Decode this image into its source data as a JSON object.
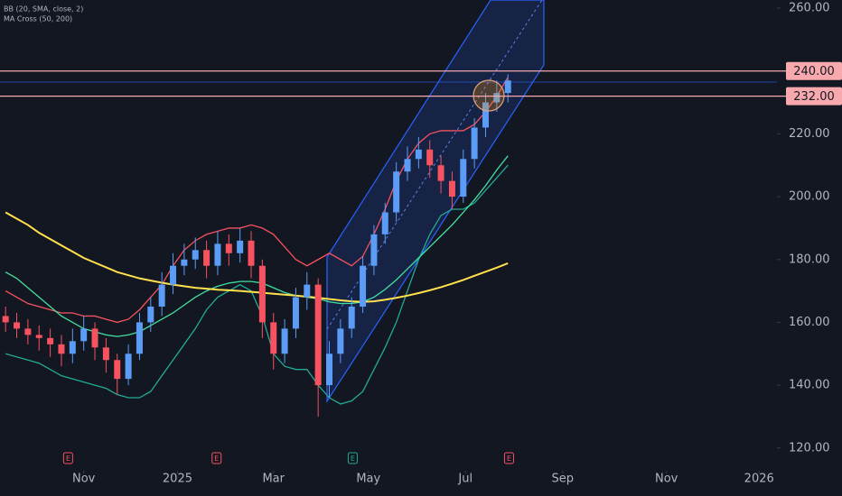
{
  "chart_data": {
    "type": "candlestick",
    "indicators": [
      "BB (20, SMA, close, 2)",
      "MA Cross (50, 200)"
    ],
    "x": [
      0,
      1,
      2,
      3,
      4,
      5,
      6,
      7,
      8,
      9,
      10,
      11,
      12,
      13,
      14,
      15,
      16,
      17,
      18,
      19,
      20,
      21,
      22,
      23,
      24,
      25,
      26,
      27,
      28,
      29,
      30,
      31,
      32,
      33,
      34,
      35,
      36,
      37,
      38,
      39,
      40,
      41,
      42,
      43,
      44,
      45
    ],
    "open": [
      162,
      160,
      158,
      156,
      155,
      153,
      150,
      154,
      158,
      152,
      148,
      142,
      150,
      160,
      165,
      172,
      178,
      180,
      183,
      178,
      185,
      182,
      186,
      178,
      160,
      150,
      158,
      168,
      172,
      140,
      150,
      158,
      165,
      178,
      188,
      195,
      208,
      212,
      215,
      210,
      205,
      200,
      212,
      222,
      230,
      233
    ],
    "high": [
      165,
      163,
      161,
      159,
      158,
      156,
      158,
      162,
      160,
      155,
      150,
      153,
      163,
      168,
      176,
      182,
      185,
      187,
      186,
      189,
      188,
      190,
      189,
      180,
      163,
      161,
      171,
      176,
      174,
      154,
      161,
      168,
      181,
      191,
      198,
      211,
      216,
      219,
      218,
      213,
      208,
      215,
      225,
      233,
      237,
      239
    ],
    "low": [
      157,
      155,
      153,
      151,
      149,
      146,
      147,
      151,
      148,
      144,
      137,
      140,
      148,
      157,
      162,
      169,
      175,
      177,
      174,
      175,
      178,
      179,
      174,
      155,
      145,
      147,
      155,
      164,
      130,
      136,
      147,
      155,
      163,
      175,
      185,
      192,
      205,
      209,
      206,
      201,
      196,
      198,
      209,
      219,
      227,
      230
    ],
    "close": [
      160,
      158,
      156,
      155,
      153,
      150,
      154,
      158,
      152,
      148,
      142,
      150,
      160,
      165,
      172,
      178,
      180,
      183,
      178,
      185,
      182,
      186,
      178,
      160,
      150,
      158,
      168,
      172,
      140,
      150,
      158,
      165,
      178,
      188,
      195,
      208,
      212,
      215,
      210,
      205,
      200,
      212,
      222,
      230,
      233,
      237
    ],
    "up_color": "#5b9cf6",
    "down_color": "#f7525f",
    "overlays": [
      {
        "color": "#f7525f",
        "values": [
          170,
          168,
          166,
          165,
          164,
          163,
          163,
          162,
          162,
          161,
          160,
          161,
          164,
          168,
          172,
          178,
          183,
          186,
          188,
          189,
          190,
          190,
          191,
          190,
          188,
          184,
          180,
          178,
          180,
          182,
          180,
          178,
          181,
          188,
          196,
          205,
          212,
          217,
          220,
          221,
          221,
          221,
          223,
          227,
          232,
          238
        ]
      },
      {
        "color": "#22ab94",
        "values": [
          150,
          149,
          148,
          147,
          145,
          143,
          142,
          141,
          140,
          139,
          137,
          136,
          136,
          138,
          143,
          148,
          153,
          158,
          164,
          168,
          170,
          172,
          170,
          162,
          150,
          146,
          145,
          145,
          140,
          136,
          134,
          135,
          138,
          145,
          152,
          160,
          170,
          180,
          188,
          194,
          196,
          196,
          198,
          202,
          206,
          210
        ]
      },
      {
        "color": "#43e0a0",
        "values": [
          176,
          174,
          171,
          168,
          165,
          162,
          160,
          158,
          157,
          156,
          155.5,
          156,
          157,
          159,
          161,
          163,
          165.5,
          168,
          170,
          171.5,
          172.5,
          173,
          173,
          172.5,
          171,
          169.5,
          168.5,
          168,
          167.5,
          166.5,
          166,
          166,
          166.5,
          168,
          170.5,
          173.5,
          177,
          180.5,
          184,
          187.5,
          191,
          195,
          199,
          203.5,
          208.5,
          213
        ]
      },
      {
        "color": "#ffe14d",
        "values": [
          195,
          193,
          191,
          188.5,
          186.5,
          184.5,
          182.5,
          180.5,
          179,
          177.5,
          176,
          175,
          174,
          173.3,
          172.6,
          172,
          171.5,
          171,
          170.7,
          170.4,
          170.2,
          170,
          169.7,
          169.4,
          169.1,
          168.8,
          168.5,
          168.2,
          167.8,
          167.4,
          167,
          166.7,
          166.5,
          166.7,
          167.2,
          167.8,
          168.5,
          169.3,
          170.2,
          171.2,
          172.3,
          173.5,
          174.8,
          176.1,
          177.4,
          178.8
        ]
      }
    ],
    "levels": [
      {
        "value": 240,
        "label": "240.00"
      },
      {
        "value": 232,
        "label": "232.00"
      }
    ],
    "level_color": "#f7a9ad",
    "events": [
      {
        "label": "E",
        "x": 5.6,
        "color": "#f7525f"
      },
      {
        "label": "E",
        "x": 18.9,
        "color": "#f7525f"
      },
      {
        "label": "E",
        "x": 31.1,
        "color": "#22ab94"
      },
      {
        "label": "E",
        "x": 45.1,
        "color": "#f7525f"
      }
    ],
    "xlim": [
      -0.5,
      69.1
    ],
    "xticks": [
      {
        "value": 7,
        "label": "Nov"
      },
      {
        "value": 15.4,
        "label": "2025"
      },
      {
        "value": 24,
        "label": "Mar"
      },
      {
        "value": 32.5,
        "label": "May"
      },
      {
        "value": 41.2,
        "label": "Jul"
      },
      {
        "value": 49.9,
        "label": "Sep"
      },
      {
        "value": 59.2,
        "label": "Nov"
      },
      {
        "value": 67.5,
        "label": "2026"
      }
    ],
    "ylim": [
      118.5,
      262.6
    ],
    "yticks": [
      {
        "value": 120,
        "label": "120.00"
      },
      {
        "value": 140,
        "label": "140.00"
      },
      {
        "value": 160,
        "label": "160.00"
      },
      {
        "value": 180,
        "label": "180.00"
      },
      {
        "value": 200,
        "label": "200.00"
      },
      {
        "value": 220,
        "label": "220.00"
      },
      {
        "value": 240,
        "label": "240.00"
      },
      {
        "value": 260,
        "label": "260.00"
      }
    ]
  }
}
